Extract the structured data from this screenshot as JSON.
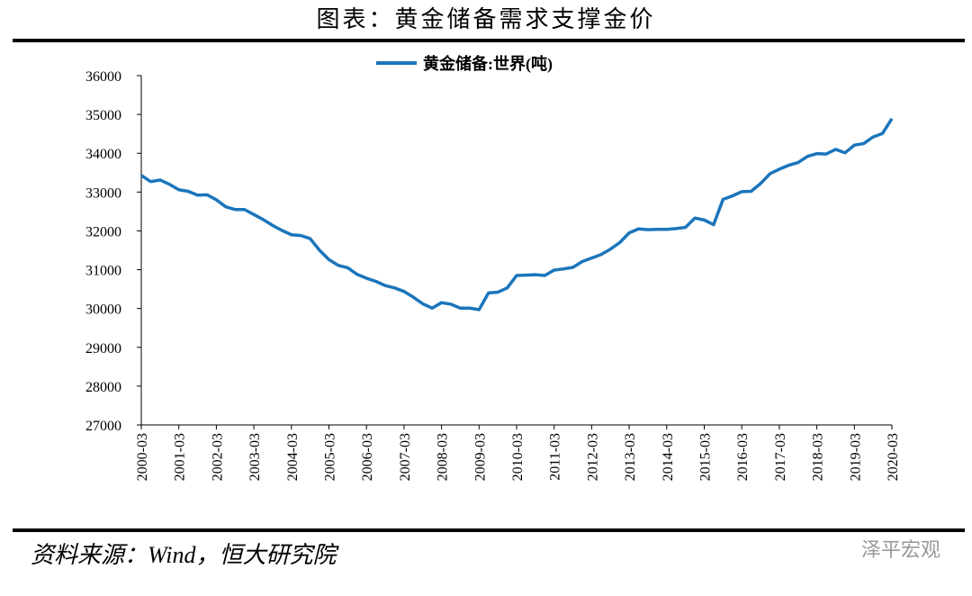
{
  "chart_data": {
    "type": "line",
    "title": "图表：黄金储备需求支撑金价",
    "categories": [
      "2000-03",
      null,
      null,
      null,
      "2001-03",
      null,
      null,
      null,
      "2002-03",
      null,
      null,
      null,
      "2003-03",
      null,
      null,
      null,
      "2004-03",
      null,
      null,
      null,
      "2005-03",
      null,
      null,
      null,
      "2006-03",
      null,
      null,
      null,
      "2007-03",
      null,
      null,
      null,
      "2008-03",
      null,
      null,
      null,
      "2009-03",
      null,
      null,
      null,
      "2010-03",
      null,
      null,
      null,
      "2011-03",
      null,
      null,
      null,
      "2012-03",
      null,
      null,
      null,
      "2013-03",
      null,
      null,
      null,
      "2014-03",
      null,
      null,
      null,
      "2015-03",
      null,
      null,
      null,
      "2016-03",
      null,
      null,
      null,
      "2017-03",
      null,
      null,
      null,
      "2018-03",
      null,
      null,
      null,
      "2019-03",
      null,
      null,
      null,
      "2020-03"
    ],
    "series": [
      {
        "name": "黄金储备:世界(吨)",
        "color": "#1b75bb",
        "values": [
          33430,
          33270,
          33310,
          33200,
          33060,
          33020,
          32920,
          32930,
          32800,
          32620,
          32550,
          32550,
          32420,
          32290,
          32140,
          32010,
          31900,
          31880,
          31800,
          31500,
          31260,
          31110,
          31050,
          30880,
          30780,
          30700,
          30590,
          30530,
          30440,
          30290,
          30120,
          30010,
          30150,
          30110,
          30010,
          30010,
          29970,
          30400,
          30420,
          30530,
          30850,
          30860,
          30870,
          30850,
          30990,
          31020,
          31060,
          31210,
          31300,
          31390,
          31530,
          31700,
          31950,
          32050,
          32030,
          32040,
          32040,
          32060,
          32090,
          32330,
          32280,
          32160,
          32810,
          32900,
          33010,
          33020,
          33220,
          33470,
          33590,
          33690,
          33760,
          33920,
          33990,
          33980,
          34100,
          34010,
          34210,
          34250,
          34420,
          34510,
          34890
        ]
      }
    ],
    "ylim": [
      27000,
      36000
    ],
    "yticks": [
      27000,
      28000,
      29000,
      30000,
      31000,
      32000,
      33000,
      34000,
      35000,
      36000
    ],
    "legend": "top"
  },
  "source": "资料来源：Wind，恒大研究院",
  "watermark": "泽平宏观"
}
